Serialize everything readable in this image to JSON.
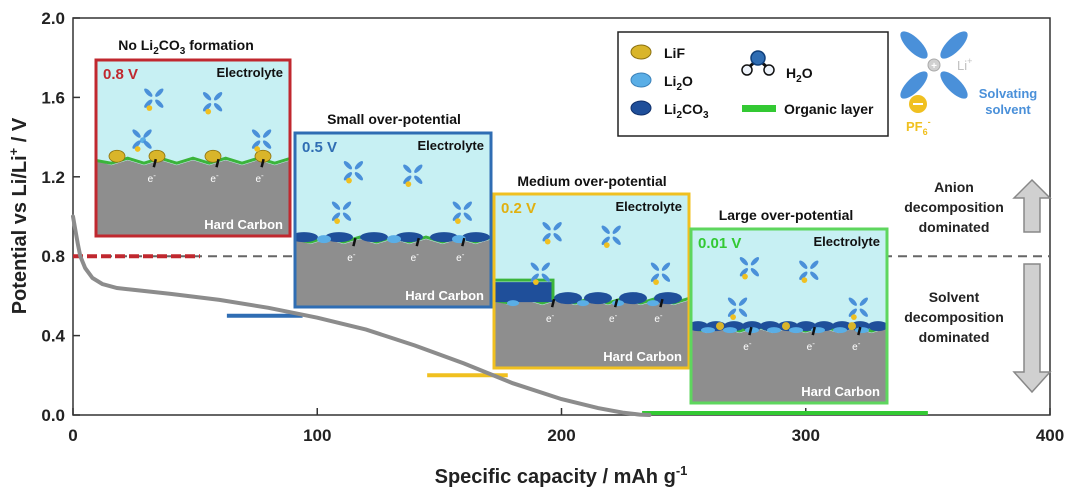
{
  "chart_data": {
    "type": "line",
    "xlabel": "Specific capacity / mAh g",
    "xlabel_sup": "-1",
    "ylabel": "Potential vs Li/Li",
    "ylabel_sup": "+",
    "ylabel_tail": " / V",
    "xlim": [
      0,
      400
    ],
    "ylim": [
      0,
      2.0
    ],
    "x_ticks": [
      0,
      100,
      200,
      300,
      400
    ],
    "y_ticks": [
      0.0,
      0.4,
      0.8,
      1.2,
      1.6,
      2.0
    ],
    "x_tick_labels": [
      "0",
      "100",
      "200",
      "300",
      "400"
    ],
    "y_tick_labels": [
      "0.0",
      "0.4",
      "0.8",
      "1.2",
      "1.6",
      "2.0"
    ],
    "curve": {
      "x": [
        0,
        1,
        2,
        3,
        5,
        8,
        12,
        18,
        25,
        40,
        60,
        80,
        100,
        120,
        140,
        160,
        180,
        200,
        215,
        225,
        232,
        236
      ],
      "y": [
        1.0,
        0.93,
        0.86,
        0.8,
        0.74,
        0.69,
        0.66,
        0.64,
        0.63,
        0.61,
        0.58,
        0.54,
        0.49,
        0.43,
        0.35,
        0.26,
        0.16,
        0.08,
        0.035,
        0.012,
        0.002,
        0.0
      ],
      "color": "#8c8c8c"
    },
    "reference_line": {
      "y": 0.8,
      "color": "#666666"
    },
    "plateaus": [
      {
        "x": [
          0,
          52
        ],
        "y": 0.8,
        "color": "#c0282f"
      },
      {
        "x": [
          63,
          94
        ],
        "y": 0.5,
        "color": "#2f6db3"
      },
      {
        "x": [
          145,
          178
        ],
        "y": 0.2,
        "color": "#f0c020"
      },
      {
        "x": [
          233,
          350
        ],
        "y": 0.01,
        "color": "#33c933"
      }
    ],
    "panels": [
      {
        "heading_pre": "No Li",
        "heading_sub1": "2",
        "heading_mid": "CO",
        "heading_sub2": "3",
        "heading_post": " formation",
        "voltage": "0.8 V",
        "electrolyte": "Electrolyte",
        "substrate": "Hard Carbon",
        "border": "#c0282f",
        "voltage_color": "#c0282f"
      },
      {
        "heading": "Small over-potential",
        "voltage": "0.5 V",
        "electrolyte": "Electrolyte",
        "substrate": "Hard Carbon",
        "border": "#2f6db3",
        "voltage_color": "#2f6db3"
      },
      {
        "heading": "Medium over-potential",
        "voltage": "0.2 V",
        "electrolyte": "Electrolyte",
        "substrate": "Hard Carbon",
        "border": "#f0c020",
        "voltage_color": "#e0b010"
      },
      {
        "heading": "Large over-potential",
        "voltage": "0.01 V",
        "electrolyte": "Electrolyte",
        "substrate": "Hard Carbon",
        "border": "#5ed65e",
        "voltage_color": "#33c933"
      }
    ],
    "electron_label": "e",
    "electron_sup": "-",
    "legend": {
      "items": [
        {
          "label": "LiF",
          "color": "#d9b52a"
        },
        {
          "label_pre": "Li",
          "label_sub": "2",
          "label_post": "O",
          "color": "#5aaee6"
        },
        {
          "label_pre": "Li",
          "label_sub": "2",
          "label_mid": "CO",
          "label_sub2": "3",
          "color": "#1f4f9a"
        }
      ],
      "h2o": {
        "label_pre": "H",
        "label_sub": "2",
        "label_post": "O",
        "color": "#2f6db3"
      },
      "organic": {
        "label": "Organic layer",
        "color": "#33c933"
      },
      "li_label": "Li",
      "li_sup": "+",
      "pf6_pre": "PF",
      "pf6_sub": "6",
      "pf6_sup": "-",
      "solvating_line1": "Solvating",
      "solvating_line2": "solvent"
    },
    "annotations": {
      "anion": [
        "Anion",
        "decomposition",
        "dominated"
      ],
      "solvent": [
        "Solvent",
        "decomposition",
        "dominated"
      ]
    },
    "colors": {
      "electrolyte_bg": "#c7f0f3",
      "carbon": "#8e8e8e",
      "sei_green": "#3bb43b",
      "lif": "#d9b52a",
      "li2o": "#5aaee6",
      "li2co3": "#1f4f9a",
      "solvent_blue": "#4a90d9",
      "anion_yellow": "#f0c020",
      "arrow_gray": "#c8c8c8"
    }
  }
}
